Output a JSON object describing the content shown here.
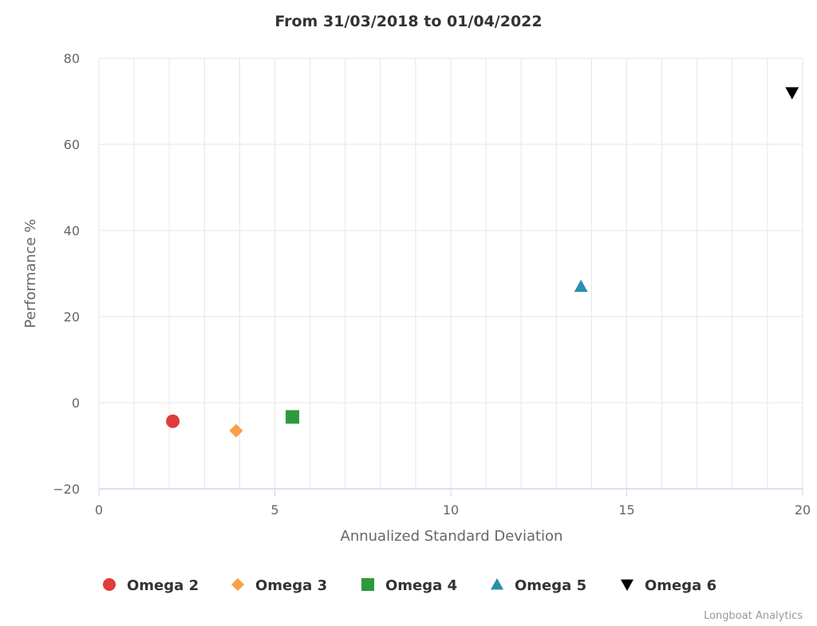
{
  "chart_data": {
    "type": "scatter",
    "title": "From 31/03/2018 to 01/04/2022",
    "xlabel": "Annualized Standard Deviation",
    "ylabel": "Performance %",
    "xlim": [
      0,
      20
    ],
    "ylim": [
      -20,
      80
    ],
    "x_ticks": [
      0,
      5,
      10,
      15,
      20
    ],
    "x_tick_labels": [
      "0",
      "5",
      "10",
      "15",
      "20"
    ],
    "y_ticks": [
      -20,
      0,
      20,
      40,
      60,
      80
    ],
    "y_tick_labels": [
      "−20",
      "0",
      "20",
      "40",
      "60",
      "80"
    ],
    "grid": true,
    "legend_position": "bottom",
    "series": [
      {
        "name": "Omega 2",
        "marker": "circle",
        "color": "#e03c3c",
        "points": [
          {
            "x": 2.1,
            "y": -4.3
          }
        ]
      },
      {
        "name": "Omega 3",
        "marker": "diamond",
        "color": "#f7a046",
        "points": [
          {
            "x": 3.9,
            "y": -6.5
          }
        ]
      },
      {
        "name": "Omega 4",
        "marker": "square",
        "color": "#2e9a3e",
        "points": [
          {
            "x": 5.5,
            "y": -3.3
          }
        ]
      },
      {
        "name": "Omega 5",
        "marker": "triangle",
        "color": "#2a8faa",
        "points": [
          {
            "x": 13.7,
            "y": 27
          }
        ]
      },
      {
        "name": "Omega 6",
        "marker": "triangle-down",
        "color": "#000000",
        "points": [
          {
            "x": 19.7,
            "y": 72
          }
        ]
      }
    ]
  },
  "credits": "Longboat Analytics"
}
